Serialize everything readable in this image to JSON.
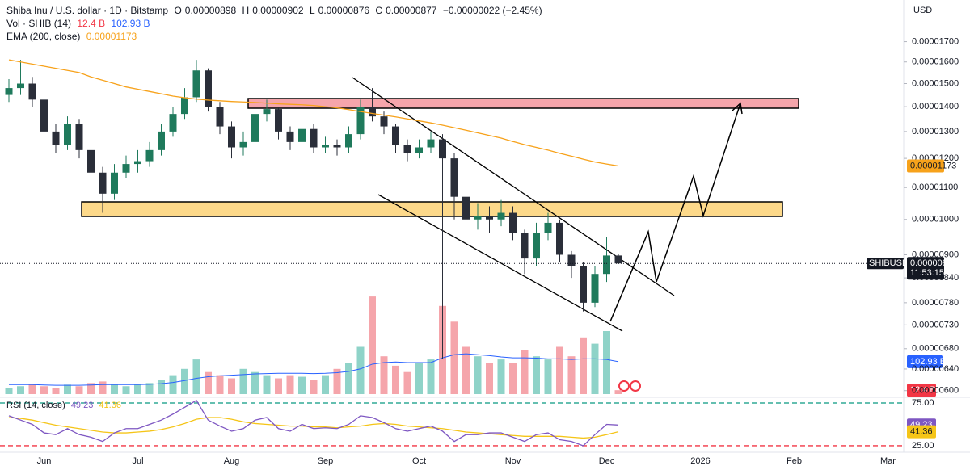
{
  "chart_data": [
    {
      "type": "candlestick",
      "title": "Shiba Inu / U.S. dollar · 1D · Bitstamp",
      "ohlc_keys": [
        "O",
        "H",
        "L",
        "C"
      ],
      "change": "−0.00000022 (−2.45%)",
      "currency": "USD",
      "symbol": "SHIBUSD",
      "countdown": "11:53:15",
      "log": true,
      "grid": false,
      "up_color": "#1f7a5c",
      "down_color": "#2a2e39",
      "categories": [
        null,
        null,
        null,
        "Jun",
        null,
        null,
        null,
        null,
        null,
        null,
        null,
        "Jul",
        null,
        null,
        null,
        null,
        null,
        null,
        null,
        "Aug",
        null,
        null,
        null,
        null,
        null,
        null,
        null,
        "Sep",
        null,
        null,
        null,
        null,
        null,
        null,
        null,
        "Oct",
        null,
        null,
        null,
        null,
        null,
        null,
        null,
        "Nov",
        null,
        null,
        null,
        null,
        null,
        null,
        null,
        "Dec",
        null,
        null,
        null,
        null,
        null,
        null,
        null,
        "2026",
        null,
        null,
        null,
        null,
        null,
        null,
        null,
        "Feb",
        null,
        null,
        null,
        null,
        null,
        null,
        null,
        "Mar",
        null
      ],
      "open": [
        1.45e-05,
        1.48e-05,
        1.5e-05,
        1.43e-05,
        1.3e-05,
        1.25e-05,
        1.33e-05,
        1.23e-05,
        1.15e-05,
        1.08e-05,
        1.15e-05,
        1.18e-05,
        1.19e-05,
        1.23e-05,
        1.3e-05,
        1.37e-05,
        1.44e-05,
        1.56e-05,
        1.4e-05,
        1.32e-05,
        1.24e-05,
        1.26e-05,
        1.37e-05,
        1.39e-05,
        1.3e-05,
        1.26e-05,
        1.31e-05,
        1.24e-05,
        1.25e-05,
        1.24e-05,
        1.29e-05,
        1.4e-05,
        1.36e-05,
        1.32e-05,
        1.25e-05,
        1.22e-05,
        1.24e-05,
        1.27e-05,
        1.2e-05,
        1.07e-05,
        1e-05,
        1.01e-05,
        1e-05,
        1.02e-05,
        9.6e-06,
        8.9e-06,
        9.6e-06,
        9.9e-06,
        9e-06,
        8.7e-06,
        7.8e-06,
        8.5e-06,
        8.98e-06,
        null,
        null,
        null,
        null,
        null,
        null,
        null,
        null,
        null,
        null,
        null,
        null,
        null,
        null,
        null,
        null,
        null,
        null,
        null,
        null,
        null,
        null,
        null,
        null
      ],
      "high": [
        1.52e-05,
        1.61e-05,
        1.53e-05,
        1.45e-05,
        1.33e-05,
        1.36e-05,
        1.35e-05,
        1.25e-05,
        1.17e-05,
        1.18e-05,
        1.21e-05,
        1.23e-05,
        1.26e-05,
        1.33e-05,
        1.4e-05,
        1.48e-05,
        1.61e-05,
        1.57e-05,
        1.42e-05,
        1.34e-05,
        1.3e-05,
        1.41e-05,
        1.43e-05,
        1.4e-05,
        1.32e-05,
        1.35e-05,
        1.33e-05,
        1.28e-05,
        1.27e-05,
        1.32e-05,
        1.43e-05,
        1.48e-05,
        1.38e-05,
        1.33e-05,
        1.27e-05,
        1.27e-05,
        1.3e-05,
        1.29e-05,
        1.22e-05,
        1.13e-05,
        1.05e-05,
        1.04e-05,
        1.06e-05,
        1.04e-05,
        9.7e-06,
        9.9e-06,
        1.02e-05,
        1e-05,
        9.1e-06,
        8.8e-06,
        8.7e-06,
        9.5e-06,
        9.02e-06,
        null,
        null,
        null,
        null,
        null,
        null,
        null,
        null,
        null,
        null,
        null,
        null,
        null,
        null,
        null,
        null,
        null,
        null,
        null,
        null,
        null,
        null,
        null,
        null
      ],
      "low": [
        1.42e-05,
        1.45e-05,
        1.4e-05,
        1.28e-05,
        1.22e-05,
        1.23e-05,
        1.2e-05,
        1.12e-05,
        1.02e-05,
        1.06e-05,
        1.13e-05,
        1.15e-05,
        1.17e-05,
        1.21e-05,
        1.28e-05,
        1.35e-05,
        1.42e-05,
        1.38e-05,
        1.29e-05,
        1.2e-05,
        1.21e-05,
        1.24e-05,
        1.34e-05,
        1.27e-05,
        1.23e-05,
        1.24e-05,
        1.22e-05,
        1.22e-05,
        1.21e-05,
        1.22e-05,
        1.27e-05,
        1.34e-05,
        1.29e-05,
        1.22e-05,
        1.19e-05,
        1.2e-05,
        1.22e-05,
        6.6e-06,
        1e-05,
        9.8e-06,
        9.7e-06,
        9.6e-06,
        9.8e-06,
        9.4e-06,
        8.5e-06,
        8.7e-06,
        9.4e-06,
        8.8e-06,
        8.4e-06,
        7.6e-06,
        7.7e-06,
        8.3e-06,
        8.76e-06,
        null,
        null,
        null,
        null,
        null,
        null,
        null,
        null,
        null,
        null,
        null,
        null,
        null,
        null,
        null,
        null,
        null,
        null,
        null,
        null,
        null,
        null,
        null,
        null
      ],
      "close": [
        1.48e-05,
        1.5e-05,
        1.43e-05,
        1.3e-05,
        1.25e-05,
        1.33e-05,
        1.23e-05,
        1.15e-05,
        1.08e-05,
        1.15e-05,
        1.18e-05,
        1.19e-05,
        1.23e-05,
        1.3e-05,
        1.37e-05,
        1.44e-05,
        1.56e-05,
        1.4e-05,
        1.32e-05,
        1.24e-05,
        1.26e-05,
        1.37e-05,
        1.39e-05,
        1.3e-05,
        1.26e-05,
        1.31e-05,
        1.24e-05,
        1.25e-05,
        1.24e-05,
        1.29e-05,
        1.4e-05,
        1.36e-05,
        1.32e-05,
        1.25e-05,
        1.22e-05,
        1.24e-05,
        1.27e-05,
        1.2e-05,
        1.07e-05,
        1e-05,
        1.01e-05,
        1e-05,
        1.02e-05,
        9.6e-06,
        8.9e-06,
        9.6e-06,
        9.9e-06,
        9e-06,
        8.7e-06,
        7.8e-06,
        8.5e-06,
        8.98e-06,
        8.77e-06,
        null,
        null,
        null,
        null,
        null,
        null,
        null,
        null,
        null,
        null,
        null,
        null,
        null,
        null,
        null,
        null,
        null,
        null,
        null,
        null,
        null,
        null,
        null,
        null
      ],
      "overlays": [
        {
          "name": "EMA (200, close)",
          "color": "#f7a21b",
          "values": [
            1.61e-05,
            1.6e-05,
            1.59e-05,
            1.58e-05,
            1.57e-05,
            1.56e-05,
            1.55e-05,
            1.53e-05,
            1.515e-05,
            1.5e-05,
            1.485e-05,
            1.475e-05,
            1.465e-05,
            1.455e-05,
            1.445e-05,
            1.438e-05,
            1.432e-05,
            1.428e-05,
            1.425e-05,
            1.422e-05,
            1.42e-05,
            1.418e-05,
            1.415e-05,
            1.412e-05,
            1.41e-05,
            1.408e-05,
            1.405e-05,
            1.4e-05,
            1.395e-05,
            1.388e-05,
            1.38e-05,
            1.372e-05,
            1.365e-05,
            1.358e-05,
            1.35e-05,
            1.342e-05,
            1.334e-05,
            1.325e-05,
            1.315e-05,
            1.305e-05,
            1.295e-05,
            1.285e-05,
            1.275e-05,
            1.262e-05,
            1.25e-05,
            1.24e-05,
            1.23e-05,
            1.218e-05,
            1.208e-05,
            1.197e-05,
            1.187e-05,
            1.18e-05,
            1.173e-05,
            null,
            null,
            null,
            null,
            null,
            null,
            null,
            null,
            null,
            null,
            null,
            null,
            null,
            null,
            null,
            null,
            null,
            null,
            null,
            null,
            null,
            null,
            null,
            null
          ]
        }
      ],
      "ylim": [
        5.91e-06,
        1.925e-05
      ],
      "yticks": [
        {
          "value": 1.7e-05,
          "label": "0.00001700"
        },
        {
          "value": 1.6e-05,
          "label": "0.00001600"
        },
        {
          "value": 1.5e-05,
          "label": "0.00001500"
        },
        {
          "value": 1.4e-05,
          "label": "0.00001400"
        },
        {
          "value": 1.3e-05,
          "label": "0.00001300"
        },
        {
          "value": 1.2e-05,
          "label": "0.00001200"
        },
        {
          "value": 1.1e-05,
          "label": "0.00001100"
        },
        {
          "value": 1e-05,
          "label": "0.00001000"
        },
        {
          "value": 9e-06,
          "label": "0.00000900"
        },
        {
          "value": 8.4e-06,
          "label": "0.00000840"
        },
        {
          "value": 7.8e-06,
          "label": "0.00000780"
        },
        {
          "value": 7.3e-06,
          "label": "0.00000730"
        },
        {
          "value": 6.8e-06,
          "label": "0.00000680"
        },
        {
          "value": 6.4e-06,
          "label": "0.00000640"
        },
        {
          "value": 6e-06,
          "label": "0.00000600"
        }
      ]
    },
    {
      "type": "bar",
      "title": "Vol · SHIB (14)",
      "up_color": "#8fd3c8",
      "down_color": "#f5a5ab",
      "values": [
        20,
        25,
        30,
        25,
        20,
        30,
        25,
        35,
        40,
        30,
        25,
        30,
        35,
        45,
        60,
        80,
        110,
        70,
        60,
        50,
        80,
        70,
        60,
        50,
        60,
        55,
        45,
        60,
        80,
        100,
        150,
        310,
        120,
        90,
        70,
        100,
        110,
        280,
        230,
        150,
        120,
        100,
        110,
        100,
        140,
        120,
        110,
        150,
        120,
        180,
        160,
        200,
        12.4,
        null,
        null,
        null,
        null,
        null,
        null,
        null,
        null,
        null,
        null,
        null,
        null,
        null,
        null,
        null,
        null,
        null,
        null,
        null,
        null,
        null,
        null,
        null,
        null
      ],
      "value_labels": [
        null,
        null,
        null,
        null,
        null,
        null,
        null,
        null,
        null,
        null,
        null,
        null,
        null,
        null,
        null,
        null,
        null,
        null,
        null,
        null,
        null,
        null,
        null,
        null,
        null,
        null,
        null,
        null,
        null,
        null,
        null,
        null,
        null,
        null,
        null,
        null,
        null,
        null,
        null,
        null,
        null,
        null,
        null,
        null,
        null,
        null,
        null,
        null,
        null,
        null,
        null,
        null,
        "12.4 B",
        null,
        null,
        null,
        null,
        null,
        null,
        null,
        null,
        null,
        null,
        null,
        null,
        null,
        null,
        null,
        null,
        null,
        null,
        null,
        null,
        null,
        null,
        null,
        null
      ],
      "label_color": "#f23645",
      "ma": {
        "color": "#2962ff",
        "values": [
          30,
          30,
          30,
          29,
          28,
          28,
          28,
          29,
          30,
          30,
          30,
          30,
          31,
          33,
          37,
          43,
          50,
          55,
          58,
          60,
          62,
          64,
          65,
          66,
          66,
          66,
          65,
          66,
          68,
          72,
          80,
          95,
          100,
          102,
          100,
          100,
          100,
          115,
          125,
          128,
          125,
          122,
          118,
          115,
          115,
          114,
          112,
          112,
          110,
          112,
          112,
          110,
          102.93,
          null,
          null,
          null,
          null,
          null,
          null,
          null,
          null,
          null,
          null,
          null,
          null,
          null,
          null,
          null,
          null,
          null,
          null,
          null,
          null,
          null,
          null,
          null,
          null
        ],
        "value_labels": [
          null,
          null,
          null,
          null,
          null,
          null,
          null,
          null,
          null,
          null,
          null,
          null,
          null,
          null,
          null,
          null,
          null,
          null,
          null,
          null,
          null,
          null,
          null,
          null,
          null,
          null,
          null,
          null,
          null,
          null,
          null,
          null,
          null,
          null,
          null,
          null,
          null,
          null,
          null,
          null,
          null,
          null,
          null,
          null,
          null,
          null,
          null,
          null,
          null,
          null,
          null,
          null,
          "102.93 B",
          null,
          null,
          null,
          null,
          null,
          null,
          null,
          null,
          null,
          null,
          null,
          null,
          null,
          null,
          null,
          null,
          null,
          null,
          null,
          null,
          null,
          null,
          null,
          null
        ]
      },
      "ylim": [
        0,
        300
      ]
    },
    {
      "type": "line",
      "tick_colors": [
        "#089981",
        "#f23645"
      ],
      "series": [
        {
          "name": "RSI (14, close)",
          "color": "#7e57c2",
          "values": [
            60,
            55,
            50,
            40,
            38,
            45,
            38,
            35,
            30,
            40,
            45,
            45,
            50,
            55,
            62,
            70,
            78,
            55,
            48,
            42,
            45,
            55,
            58,
            45,
            42,
            50,
            45,
            46,
            45,
            50,
            60,
            58,
            52,
            45,
            42,
            45,
            48,
            42,
            30,
            38,
            38,
            40,
            40,
            35,
            30,
            38,
            40,
            32,
            30,
            25,
            38,
            50,
            49.23,
            null,
            null,
            null,
            null,
            null,
            null,
            null,
            null,
            null,
            null,
            null,
            null,
            null,
            null,
            null,
            null,
            null,
            null,
            null,
            null,
            null,
            null,
            null,
            null
          ]
        },
        {
          "color": "#f5c518",
          "values": [
            58,
            57,
            55,
            52,
            49,
            47,
            45,
            43,
            41,
            40,
            40,
            41,
            42,
            44,
            47,
            51,
            56,
            58,
            58,
            56,
            53,
            51,
            50,
            49,
            48,
            48,
            47,
            47,
            46,
            47,
            48,
            50,
            51,
            50,
            48,
            47,
            46,
            45,
            43,
            41,
            40,
            39,
            38,
            37,
            36,
            36,
            36,
            36,
            35,
            34,
            35,
            38,
            41.36,
            null,
            null,
            null,
            null,
            null,
            null,
            null,
            null,
            null,
            null,
            null,
            null,
            null,
            null,
            null,
            null,
            null,
            null,
            null,
            null,
            null,
            null,
            null,
            null
          ]
        }
      ],
      "ylim": [
        19.3,
        81.6
      ],
      "yticks": [
        {
          "value": 75,
          "label": "75.00"
        },
        {
          "value": 25,
          "label": "25.00"
        }
      ]
    }
  ]
}
